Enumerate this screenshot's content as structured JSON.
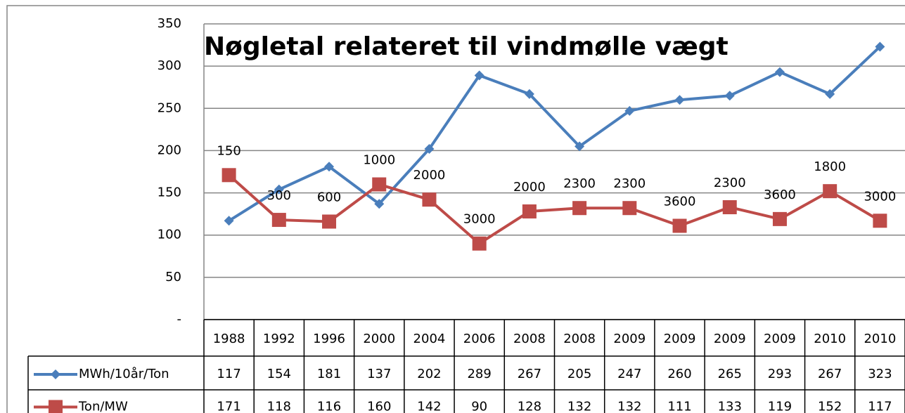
{
  "chart_data": {
    "type": "line",
    "title": "Nøgletal relateret til vindmølle vægt",
    "categories": [
      "1988",
      "1992",
      "1996",
      "2000",
      "2004",
      "2006",
      "2008",
      "2008",
      "2009",
      "2009",
      "2009",
      "2009",
      "2010",
      "2010"
    ],
    "series": [
      {
        "name": "MWh/10år/Ton",
        "color": "#4a7ebb",
        "marker": "diamond",
        "values": [
          117,
          154,
          181,
          137,
          202,
          289,
          267,
          205,
          247,
          260,
          265,
          293,
          267,
          323
        ]
      },
      {
        "name": "Ton/MW",
        "color": "#be4b48",
        "marker": "square",
        "values": [
          171,
          118,
          116,
          160,
          142,
          90,
          128,
          132,
          132,
          111,
          133,
          119,
          152,
          117
        ],
        "annotations": [
          "150",
          "300",
          "600",
          "1000",
          "2000",
          "3000",
          "2000",
          "2300",
          "2300",
          "3600",
          "2300",
          "3600",
          "1800",
          "3000"
        ]
      }
    ],
    "ylim": [
      0,
      350
    ],
    "yticks": [
      {
        "value": 0,
        "label": "-"
      },
      50,
      100,
      150,
      200,
      250,
      300,
      350
    ],
    "grid": true,
    "data_table": true
  }
}
